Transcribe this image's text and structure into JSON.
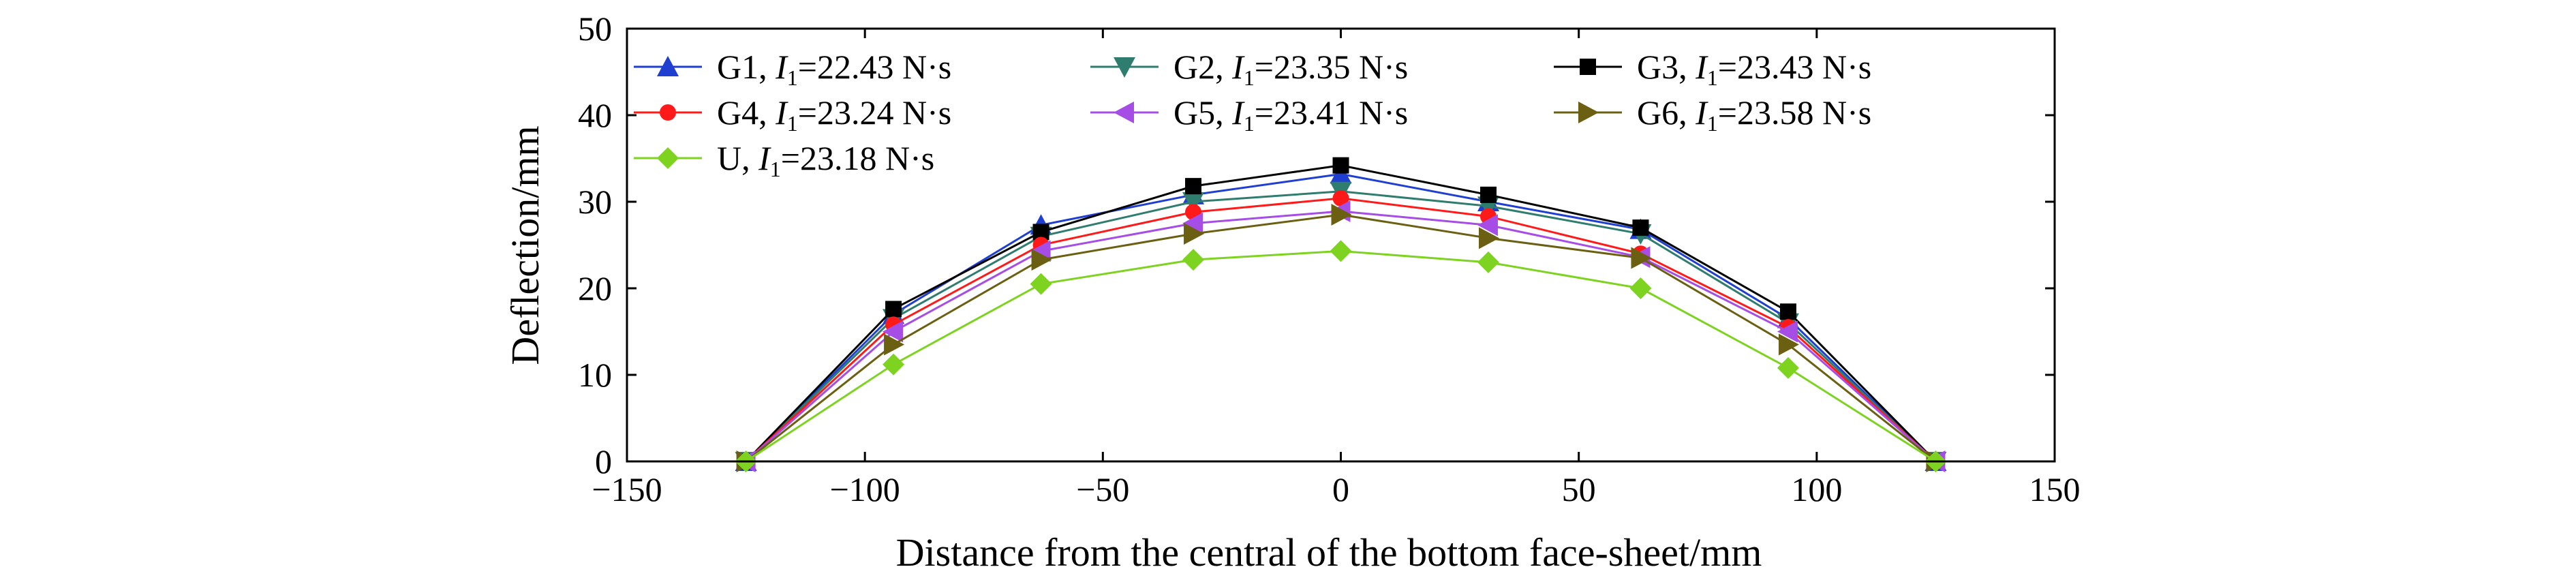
{
  "chart_data": {
    "type": "line",
    "xlabel": "Distance from the central of the bottom face-sheet/mm",
    "ylabel": "Deflection/mm",
    "xlim": [
      -150,
      150
    ],
    "ylim": [
      0,
      50
    ],
    "xticks": [
      "−150",
      "−100",
      "−50",
      "0",
      "50",
      "100",
      "150"
    ],
    "yticks": [
      "0",
      "10",
      "20",
      "30",
      "40",
      "50"
    ],
    "grid": false,
    "legend_position": "top",
    "x": [
      -125,
      -94,
      -63,
      -31,
      0,
      31,
      63,
      94,
      125
    ],
    "series": [
      {
        "name": "G1, I1=22.43 N·s",
        "label": {
          "pre": "G1, ",
          "sym": "I",
          "sub": "1",
          "post": "=22.43 N·s"
        },
        "color": "#1f3fd1",
        "marker": "triangle-up",
        "values": [
          0,
          17.0,
          27.3,
          30.8,
          33.2,
          30.0,
          26.8,
          16.5,
          0
        ]
      },
      {
        "name": "G2, I1=23.35 N·s",
        "label": {
          "pre": "G2, ",
          "sym": "I",
          "sub": "1",
          "post": "=23.35 N·s"
        },
        "color": "#2e7d6e",
        "marker": "triangle-down",
        "values": [
          0,
          16.5,
          26.0,
          30.0,
          31.2,
          29.5,
          26.3,
          16.0,
          0
        ]
      },
      {
        "name": "G3, I1=23.43 N·s",
        "label": {
          "pre": "G3, ",
          "sym": "I",
          "sub": "1",
          "post": "=23.43 N·s"
        },
        "color": "#000000",
        "marker": "square",
        "values": [
          0,
          17.6,
          26.5,
          31.8,
          34.2,
          30.8,
          27.0,
          17.3,
          0
        ]
      },
      {
        "name": "G4, I1=23.24 N·s",
        "label": {
          "pre": "G4, ",
          "sym": "I",
          "sub": "1",
          "post": "=23.24 N·s"
        },
        "color": "#ff1a1a",
        "marker": "circle",
        "values": [
          0,
          15.8,
          25.0,
          28.8,
          30.4,
          28.3,
          24.0,
          15.5,
          0
        ]
      },
      {
        "name": "G5, I1=23.41 N·s",
        "label": {
          "pre": "G5, ",
          "sym": "I",
          "sub": "1",
          "post": "=23.41 N·s"
        },
        "color": "#a64de6",
        "marker": "triangle-left",
        "values": [
          0,
          15.0,
          24.3,
          27.5,
          28.9,
          27.3,
          23.6,
          15.0,
          0
        ]
      },
      {
        "name": "G6, I1=23.58 N·s",
        "label": {
          "pre": "G6, ",
          "sym": "I",
          "sub": "1",
          "post": "=23.58 N·s"
        },
        "color": "#6b6012",
        "marker": "triangle-right",
        "values": [
          0,
          13.5,
          23.3,
          26.3,
          28.5,
          25.8,
          23.5,
          13.5,
          0
        ]
      },
      {
        "name": "U, I1=23.18 N·s",
        "label": {
          "pre": "U, ",
          "sym": "I",
          "sub": "1",
          "post": "=23.18 N·s"
        },
        "color": "#7ed321",
        "marker": "diamond",
        "values": [
          0,
          11.2,
          20.5,
          23.3,
          24.3,
          23.0,
          20.0,
          10.8,
          0
        ]
      }
    ]
  }
}
